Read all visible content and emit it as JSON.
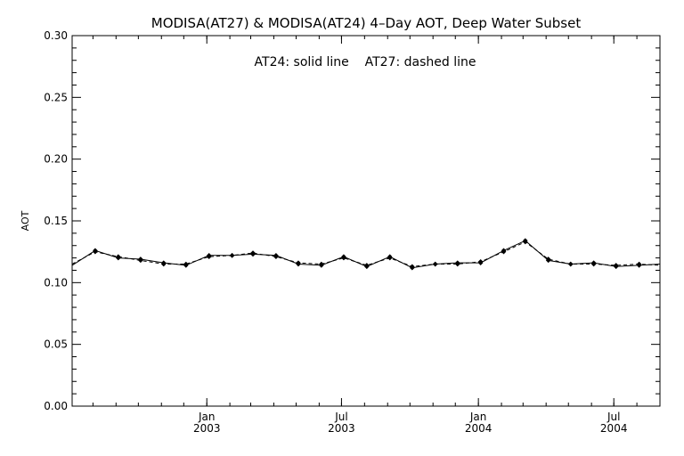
{
  "chart_data": {
    "type": "line",
    "title": "MODISA(AT27) & MODISA(AT24) 4–Day AOT, Deep Water Subset",
    "annotation": "AT24: solid line    AT27: dashed line",
    "xlabel": "",
    "ylabel": "AOT",
    "ylim": [
      0.0,
      0.3
    ],
    "yticks": [
      "0.00",
      "0.05",
      "0.10",
      "0.15",
      "0.20",
      "0.25",
      "0.30"
    ],
    "xlim": [
      "2002-07-04",
      "2004-09-01"
    ],
    "xticks": [
      {
        "date": "2003-01-01",
        "month": "Jan",
        "year": "2003"
      },
      {
        "date": "2003-07-01",
        "month": "Jul",
        "year": "2003"
      },
      {
        "date": "2004-01-01",
        "month": "Jan",
        "year": "2004"
      },
      {
        "date": "2004-07-01",
        "month": "Jul",
        "year": "2004"
      }
    ],
    "grid": false,
    "legend": "none",
    "series": [
      {
        "style": "solid",
        "color": "#000000",
        "x": [
          "2002-07-04",
          "2002-08-04",
          "2002-09-04",
          "2002-10-04",
          "2002-11-04",
          "2002-12-04",
          "2003-01-04",
          "2003-02-04",
          "2003-03-04",
          "2003-04-04",
          "2003-05-04",
          "2003-06-04",
          "2003-07-04",
          "2003-08-04",
          "2003-09-04",
          "2003-10-04",
          "2003-11-04",
          "2003-12-04",
          "2004-01-04",
          "2004-02-04",
          "2004-03-04",
          "2004-04-04",
          "2004-05-04",
          "2004-06-04",
          "2004-07-04",
          "2004-08-04",
          "2004-09-01"
        ],
        "values": [
          0.114,
          0.126,
          0.12,
          0.119,
          0.116,
          0.114,
          0.122,
          0.122,
          0.123,
          0.122,
          0.115,
          0.114,
          0.121,
          0.113,
          0.121,
          0.112,
          0.115,
          0.116,
          0.116,
          0.126,
          0.134,
          0.118,
          0.115,
          0.116,
          0.113,
          0.114,
          0.115
        ]
      },
      {
        "style": "dashed",
        "color": "#000000",
        "x": [
          "2002-07-04",
          "2002-08-04",
          "2002-09-04",
          "2002-10-04",
          "2002-11-04",
          "2002-12-04",
          "2003-01-04",
          "2003-02-04",
          "2003-03-04",
          "2003-04-04",
          "2003-05-04",
          "2003-06-04",
          "2003-07-04",
          "2003-08-04",
          "2003-09-04",
          "2003-10-04",
          "2003-11-04",
          "2003-12-04",
          "2004-01-04",
          "2004-02-04",
          "2004-03-04",
          "2004-04-04",
          "2004-05-04",
          "2004-06-04",
          "2004-07-04",
          "2004-08-04",
          "2004-09-01"
        ],
        "values": [
          0.115,
          0.125,
          0.121,
          0.118,
          0.115,
          0.115,
          0.121,
          0.122,
          0.124,
          0.121,
          0.116,
          0.115,
          0.12,
          0.114,
          0.12,
          0.113,
          0.115,
          0.115,
          0.117,
          0.125,
          0.133,
          0.119,
          0.115,
          0.115,
          0.114,
          0.115,
          0.114
        ]
      }
    ]
  }
}
